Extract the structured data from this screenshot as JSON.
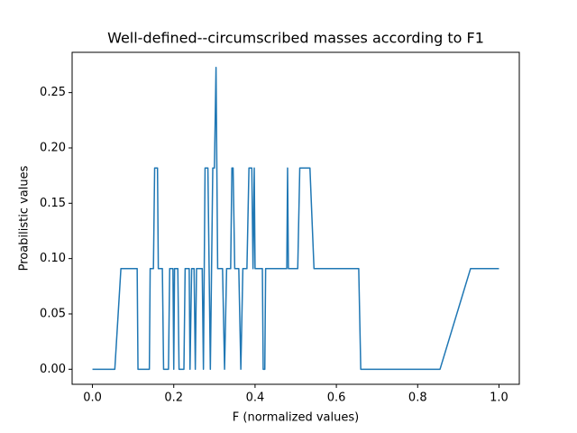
{
  "chart_data": {
    "type": "line",
    "title": "Well-defined--circumscribed masses according to F1",
    "xlabel": "F (normalized values)",
    "ylabel": "Proabilistic values",
    "x": [
      0,
      0.055,
      0.07,
      0.11,
      0.112,
      0.14,
      0.142,
      0.15,
      0.153,
      0.16,
      0.162,
      0.172,
      0.175,
      0.187,
      0.19,
      0.198,
      0.2,
      0.202,
      0.21,
      0.213,
      0.225,
      0.228,
      0.238,
      0.24,
      0.244,
      0.25,
      0.253,
      0.256,
      0.27,
      0.273,
      0.277,
      0.284,
      0.287,
      0.29,
      0.293,
      0.296,
      0.3,
      0.304,
      0.308,
      0.31,
      0.32,
      0.325,
      0.33,
      0.34,
      0.343,
      0.346,
      0.35,
      0.36,
      0.365,
      0.37,
      0.38,
      0.385,
      0.392,
      0.395,
      0.398,
      0.4,
      0.418,
      0.42,
      0.424,
      0.426,
      0.478,
      0.48,
      0.482,
      0.505,
      0.51,
      0.535,
      0.545,
      0.655,
      0.66,
      0.855,
      0.93,
      1.0
    ],
    "values": [
      0,
      0,
      0.0909,
      0.0909,
      0,
      0,
      0.0909,
      0.0909,
      0.1818,
      0.1818,
      0.0909,
      0.0909,
      0,
      0,
      0.0909,
      0.0909,
      0,
      0.0909,
      0.0909,
      0,
      0,
      0.0909,
      0.0909,
      0,
      0.0909,
      0.0909,
      0,
      0.0909,
      0.0909,
      0,
      0.1818,
      0.1818,
      0.0909,
      0,
      0.0909,
      0.1818,
      0.1818,
      0.2727,
      0.0909,
      0.0909,
      0.0909,
      0,
      0.0909,
      0.0909,
      0.1818,
      0.1818,
      0.0909,
      0.0909,
      0,
      0.0909,
      0.0909,
      0.1818,
      0.1818,
      0.0909,
      0.1818,
      0.0909,
      0.0909,
      0,
      0,
      0.0909,
      0.0909,
      0.1818,
      0.0909,
      0.0909,
      0.1818,
      0.1818,
      0.0909,
      0.0909,
      0,
      0,
      0.0909,
      0.0909
    ],
    "color": "#1f77b4",
    "xlim": [
      -0.05,
      1.05
    ],
    "ylim": [
      -0.0136,
      0.2864
    ],
    "xticks": [
      {
        "value": 0,
        "label": "0.0"
      },
      {
        "value": 0.2,
        "label": "0.2"
      },
      {
        "value": 0.4,
        "label": "0.4"
      },
      {
        "value": 0.6,
        "label": "0.6"
      },
      {
        "value": 0.8,
        "label": "0.8"
      },
      {
        "value": 1,
        "label": "1.0"
      }
    ],
    "yticks": [
      {
        "value": 0,
        "label": "0.00"
      },
      {
        "value": 0.05,
        "label": "0.05"
      },
      {
        "value": 0.1,
        "label": "0.10"
      },
      {
        "value": 0.15,
        "label": "0.15"
      },
      {
        "value": 0.2,
        "label": "0.20"
      },
      {
        "value": 0.25,
        "label": "0.25"
      }
    ],
    "grid": false
  }
}
